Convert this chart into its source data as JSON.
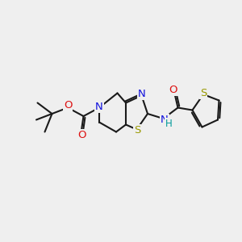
{
  "bg_color": "#efefef",
  "bond_color": "#1a1a1a",
  "bond_width": 1.5,
  "atom_colors": {
    "N": "#1111dd",
    "O": "#dd1111",
    "S": "#999900",
    "H_color": "#009999"
  },
  "font_size": 8.5,
  "fig_width": 3.0,
  "fig_height": 3.0,
  "dpi": 100
}
